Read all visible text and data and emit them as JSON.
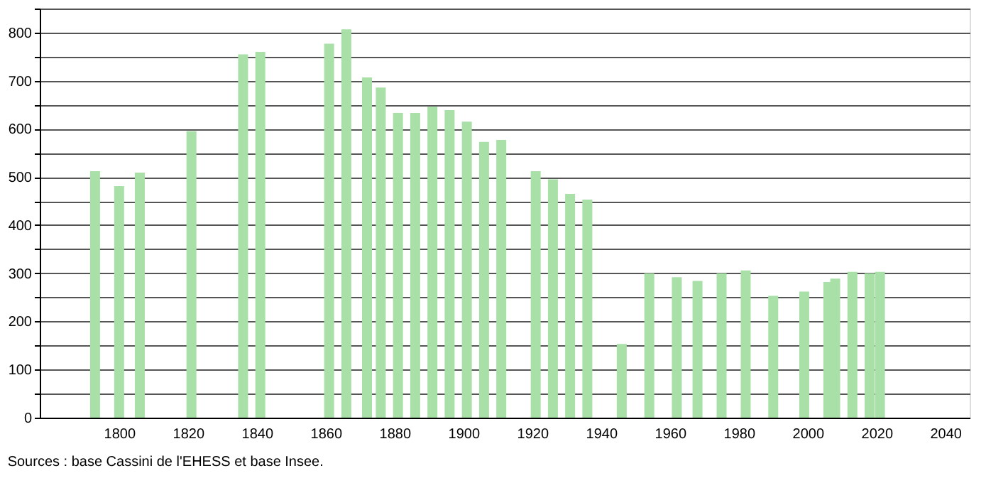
{
  "chart_data": {
    "type": "bar",
    "color": "#a8e0a8",
    "x": [
      1793,
      1800,
      1806,
      1821,
      1836,
      1841,
      1861,
      1866,
      1872,
      1876,
      1881,
      1886,
      1891,
      1896,
      1901,
      1906,
      1911,
      1921,
      1926,
      1931,
      1936,
      1946,
      1954,
      1962,
      1968,
      1975,
      1982,
      1990,
      1999,
      2006,
      2008,
      2013,
      2018,
      2021
    ],
    "values": [
      512,
      481,
      509,
      595,
      755,
      760,
      777,
      807,
      707,
      686,
      633,
      633,
      646,
      639,
      615,
      573,
      577,
      512,
      495,
      465,
      453,
      153,
      300,
      292,
      284,
      300,
      306,
      253,
      262,
      282,
      289,
      303,
      300,
      303
    ],
    "xlim": [
      1779,
      2045
    ],
    "xticks": [
      1800,
      1820,
      1840,
      1860,
      1880,
      1900,
      1920,
      1940,
      1960,
      1980,
      2000,
      2020,
      2040
    ],
    "ylim": [
      0,
      850
    ],
    "yticks": [
      0,
      {
        "value": 50,
        "label": null
      },
      100,
      {
        "value": 150,
        "label": null
      },
      200,
      {
        "value": 250,
        "label": null
      },
      300,
      {
        "value": 350,
        "label": null
      },
      400,
      {
        "value": 450,
        "label": null
      },
      500,
      {
        "value": 550,
        "label": null
      },
      600,
      {
        "value": 650,
        "label": null
      },
      700,
      {
        "value": 750,
        "label": null
      },
      800,
      {
        "value": 850,
        "label": null
      }
    ],
    "grid": "y",
    "annotations": [
      "Sources : base Cassini de l'EHESS et base Insee."
    ]
  }
}
